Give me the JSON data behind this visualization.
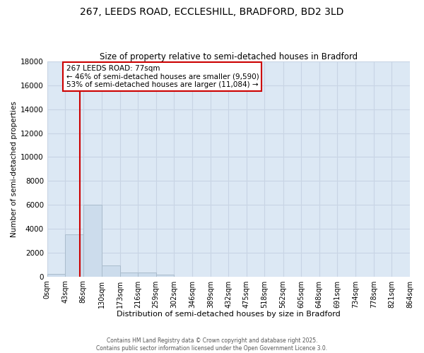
{
  "title": "267, LEEDS ROAD, ECCLESHILL, BRADFORD, BD2 3LD",
  "subtitle": "Size of property relative to semi-detached houses in Bradford",
  "xlabel": "Distribution of semi-detached houses by size in Bradford",
  "ylabel": "Number of semi-detached properties",
  "property_size": 77,
  "pct_smaller": 46,
  "pct_larger": 53,
  "n_smaller": 9590,
  "n_larger": 11084,
  "bin_edges": [
    0,
    43,
    86,
    130,
    173,
    216,
    259,
    302,
    346,
    389,
    432,
    475,
    518,
    562,
    605,
    648,
    691,
    734,
    778,
    821,
    864
  ],
  "bin_labels": [
    "0sqm",
    "43sqm",
    "86sqm",
    "130sqm",
    "173sqm",
    "216sqm",
    "259sqm",
    "302sqm",
    "346sqm",
    "389sqm",
    "432sqm",
    "475sqm",
    "518sqm",
    "562sqm",
    "605sqm",
    "648sqm",
    "691sqm",
    "734sqm",
    "778sqm",
    "821sqm",
    "864sqm"
  ],
  "bar_heights": [
    200,
    3500,
    6000,
    950,
    330,
    330,
    150,
    0,
    0,
    0,
    0,
    0,
    0,
    0,
    0,
    0,
    0,
    0,
    0,
    0
  ],
  "bar_color": "#ccdcec",
  "bar_edge_color": "#aabccc",
  "red_line_color": "#cc0000",
  "annotation_box_color": "#cc0000",
  "ylim": [
    0,
    18000
  ],
  "yticks": [
    0,
    2000,
    4000,
    6000,
    8000,
    10000,
    12000,
    14000,
    16000,
    18000
  ],
  "grid_color": "#c8d4e4",
  "bg_color": "#dce8f4",
  "footer_line1": "Contains HM Land Registry data © Crown copyright and database right 2025.",
  "footer_line2": "Contains public sector information licensed under the Open Government Licence 3.0."
}
